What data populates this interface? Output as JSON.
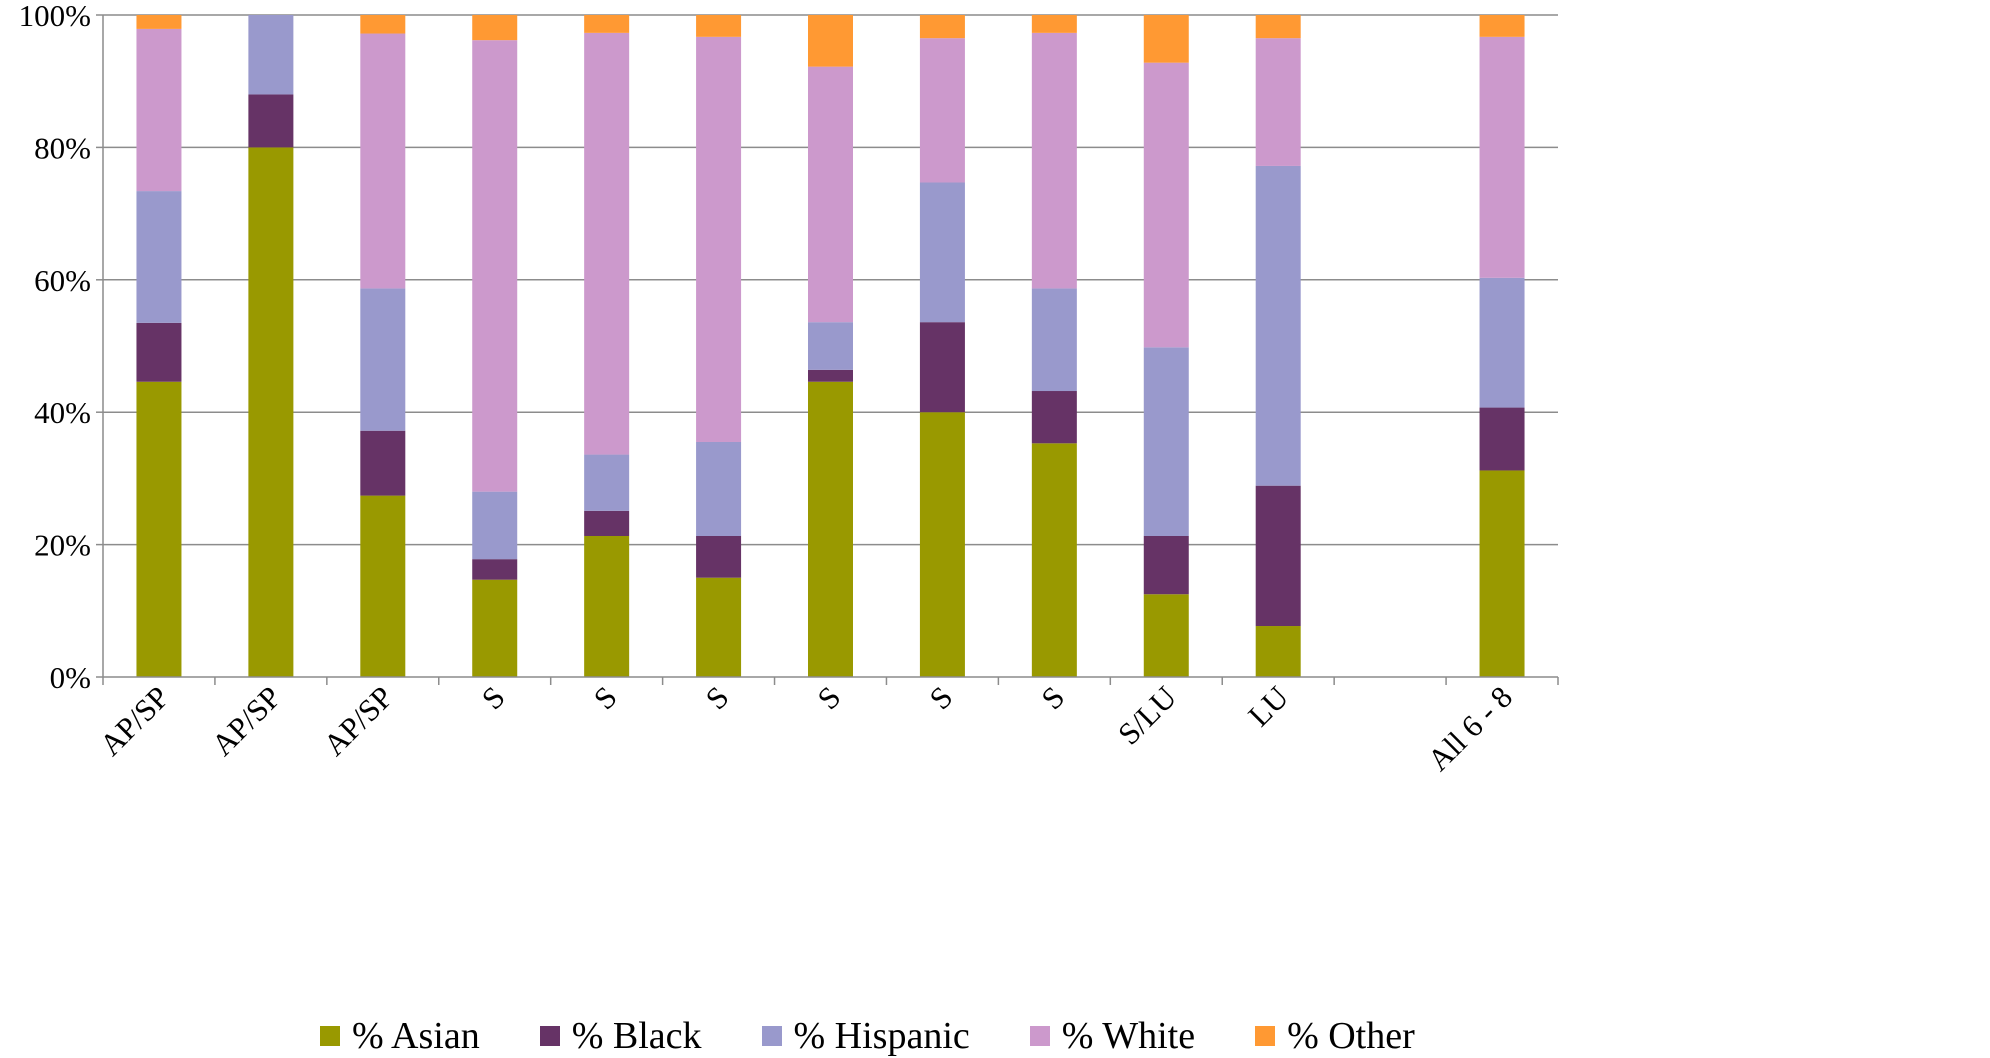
{
  "chart_data": {
    "type": "bar",
    "stacked": true,
    "percent_stacked": true,
    "categories": [
      "AP/SP",
      "AP/SP",
      "AP/SP",
      "S",
      "S",
      "S",
      "S",
      "S",
      "S",
      "S/LU",
      "LU",
      "",
      "All 6 - 8"
    ],
    "series": [
      {
        "name": "% Asian",
        "color": "#999900",
        "values": [
          44.6,
          80.0,
          27.4,
          14.7,
          21.3,
          15.0,
          44.6,
          40.0,
          35.3,
          12.5,
          7.7,
          0,
          31.2
        ]
      },
      {
        "name": "% Black",
        "color": "#663366",
        "values": [
          8.9,
          8.0,
          9.8,
          3.1,
          3.8,
          6.3,
          1.8,
          13.6,
          7.9,
          8.8,
          21.2,
          0,
          9.5
        ]
      },
      {
        "name": "% Hispanic",
        "color": "#9999CC",
        "values": [
          19.9,
          12.0,
          21.5,
          10.2,
          8.5,
          14.2,
          7.2,
          21.1,
          15.5,
          28.5,
          48.3,
          0,
          19.6
        ]
      },
      {
        "name": "% White",
        "color": "#CC99CC",
        "values": [
          24.5,
          0,
          38.5,
          68.2,
          63.7,
          61.2,
          38.6,
          21.8,
          38.6,
          43.0,
          19.3,
          0,
          36.4
        ]
      },
      {
        "name": "% Other",
        "color": "#FF9933",
        "values": [
          2.1,
          0,
          2.8,
          3.8,
          2.7,
          3.3,
          7.8,
          3.5,
          2.7,
          7.2,
          3.5,
          0,
          3.3
        ]
      }
    ],
    "y_ticks": [
      "0%",
      "20%",
      "40%",
      "60%",
      "80%",
      "100%"
    ],
    "ylim": [
      0,
      100
    ],
    "title": "",
    "xlabel": "",
    "ylabel": "",
    "grid": true,
    "legend_position": "bottom"
  }
}
